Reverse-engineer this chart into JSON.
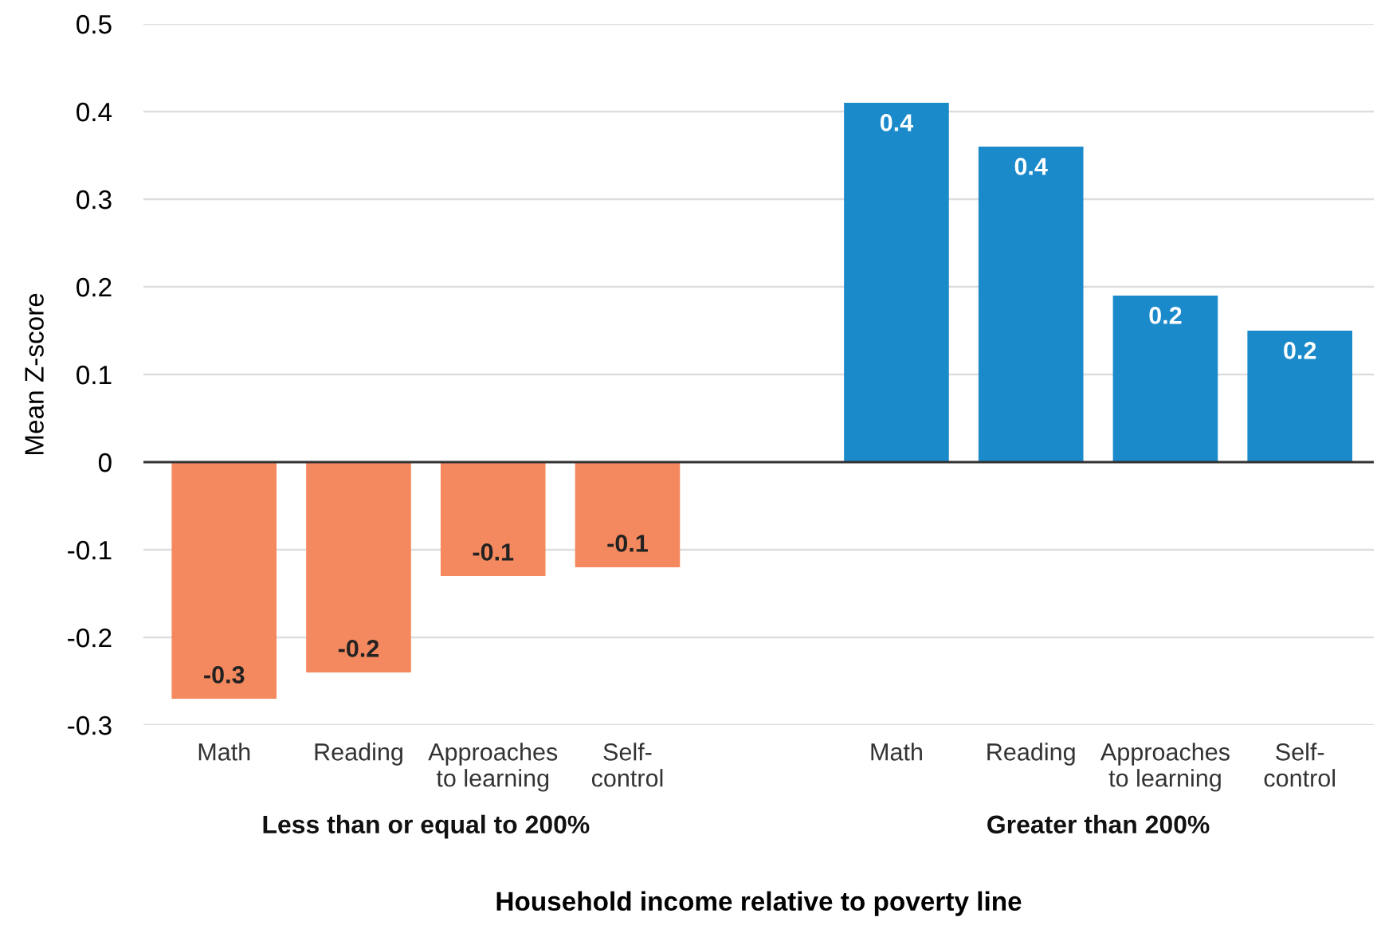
{
  "chart_data": {
    "type": "bar",
    "ylabel": "Mean Z-score",
    "xlabel": "Household income relative to poverty line",
    "categories": [
      "Math",
      "Reading",
      "Approaches\nto learning",
      "Self-\ncontrol",
      null,
      "Math",
      "Reading",
      "Approaches\nto learning",
      "Self-\ncontrol"
    ],
    "series": [
      {
        "color": "#f4895f",
        "values": [
          -0.27,
          -0.24,
          -0.13,
          -0.12,
          null,
          null,
          null,
          null,
          null
        ],
        "value_labels": [
          "-0.3",
          "-0.2",
          "-0.1",
          "-0.1",
          null,
          null,
          null,
          null,
          null
        ]
      },
      {
        "color": "#1b8acb",
        "values": [
          null,
          null,
          null,
          null,
          null,
          0.41,
          0.36,
          0.19,
          0.15
        ],
        "value_labels": [
          null,
          null,
          null,
          null,
          null,
          "0.4",
          "0.4",
          "0.2",
          "0.2"
        ]
      }
    ],
    "annotations": [
      "Less than or equal to 200%",
      "Greater than 200%"
    ],
    "ylim": [
      -0.3,
      0.5
    ],
    "yticks": [
      -0.3,
      -0.2,
      -0.1,
      0,
      0.1,
      0.2,
      0.3,
      0.4,
      0.5
    ],
    "grid": "y",
    "ref_lines": [
      {
        "axis": "y",
        "value": 0,
        "color": "#333333"
      }
    ],
    "legend": false
  }
}
